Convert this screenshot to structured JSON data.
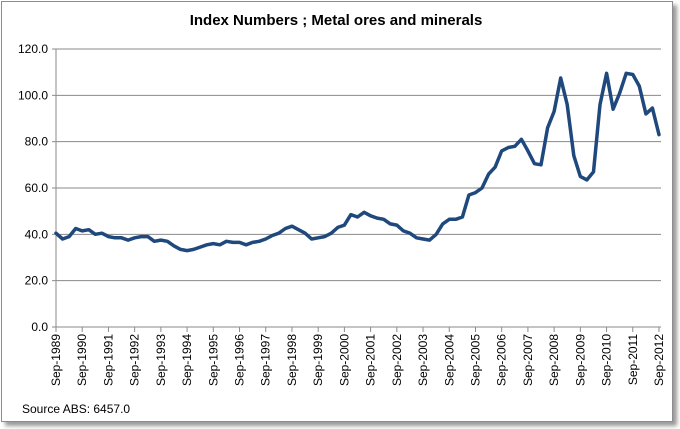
{
  "chart_data": {
    "type": "line",
    "title": "Index Numbers ;  Metal ores and minerals",
    "source": "Source ABS: 6457.0",
    "xlabel": "",
    "ylabel": "",
    "ylim": [
      0,
      120
    ],
    "y_ticks": [
      "0.0",
      "20.0",
      "40.0",
      "60.0",
      "80.0",
      "100.0",
      "120.0"
    ],
    "grid": true,
    "legend": "none",
    "frequency": "quarterly",
    "x_tick_labels": [
      "Sep-1989",
      "Sep-1990",
      "Sep-1991",
      "Sep-1992",
      "Sep-1993",
      "Sep-1994",
      "Sep-1995",
      "Sep-1996",
      "Sep-1997",
      "Sep-1998",
      "Sep-1999",
      "Sep-2000",
      "Sep-2001",
      "Sep-2002",
      "Sep-2003",
      "Sep-2004",
      "Sep-2005",
      "Sep-2006",
      "Sep-2007",
      "Sep-2008",
      "Sep-2009",
      "Sep-2010",
      "Sep-2011",
      "Sep-2012"
    ],
    "series": [
      {
        "name": "Metal ores and minerals",
        "color": "#1f497d",
        "values": [
          40.5,
          38,
          39,
          42.5,
          41.5,
          42,
          40,
          40.5,
          39,
          38.5,
          38.5,
          37.5,
          38.5,
          39,
          39,
          37,
          37.5,
          37,
          35,
          33.5,
          33,
          33.5,
          34.5,
          35.5,
          36,
          35.5,
          37,
          36.5,
          36.5,
          35.5,
          36.5,
          37,
          38,
          39.5,
          40.5,
          42.5,
          43.5,
          42,
          40.5,
          38,
          38.5,
          39,
          40.5,
          43,
          44,
          48.5,
          47.5,
          49.5,
          48,
          47,
          46.5,
          44.5,
          44,
          41.5,
          40.5,
          38.5,
          38,
          37.5,
          40,
          44.5,
          46.5,
          46.5,
          47.5,
          57,
          58,
          60,
          66,
          69,
          76,
          77.5,
          78,
          81,
          76,
          70.5,
          70,
          86,
          93,
          107.5,
          96,
          74,
          65,
          63.5,
          67,
          96,
          109.5,
          94,
          101,
          109.5,
          109,
          104,
          92,
          94.5,
          83
        ]
      }
    ]
  }
}
